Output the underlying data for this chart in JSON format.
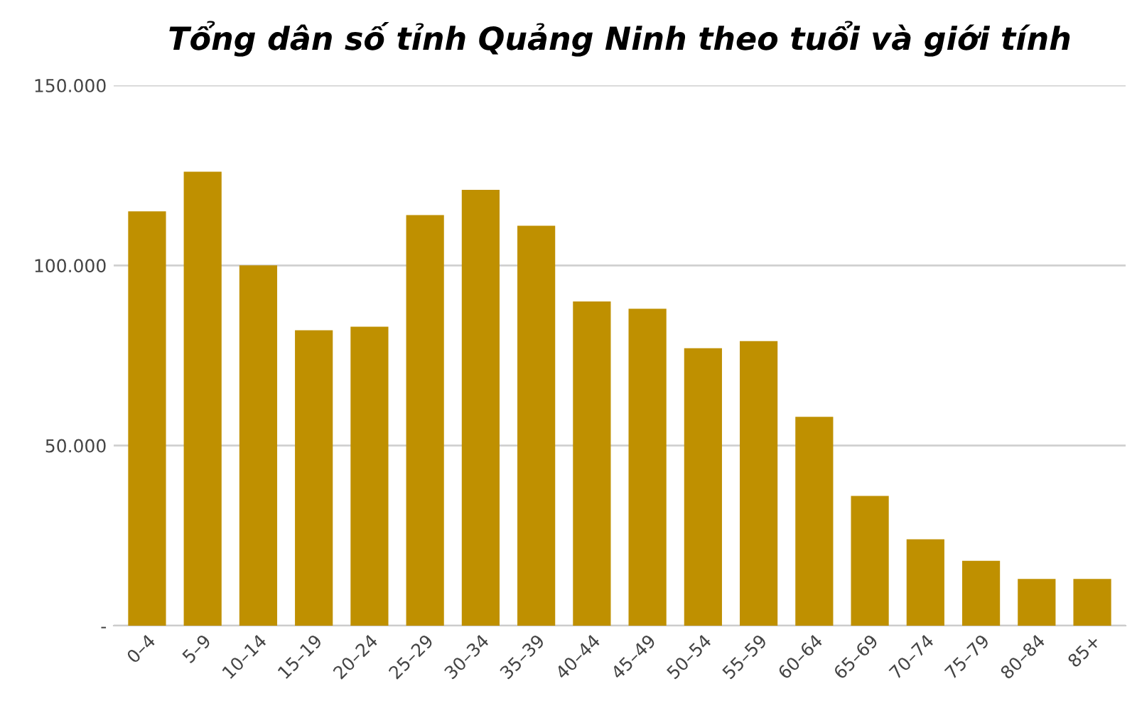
{
  "chart_data": {
    "type": "bar",
    "title": "Tổng dân số tỉnh Quảng Ninh theo tuổi và giới tính",
    "categories": [
      "0–4",
      "5–9",
      "10–14",
      "15–19",
      "20–24",
      "25–29",
      "30–34",
      "35–39",
      "40–44",
      "45–49",
      "50–54",
      "55–59",
      "60–64",
      "65–69",
      "70–74",
      "75–79",
      "80–84",
      "85+"
    ],
    "values": [
      115000,
      126000,
      100000,
      82000,
      83000,
      114000,
      121000,
      111000,
      90000,
      88000,
      77000,
      79000,
      58000,
      36000,
      24000,
      18000,
      13000,
      13000
    ],
    "color": "#bf9000",
    "ylim": [
      0,
      150000
    ],
    "yticks": [
      {
        "value": 0,
        "label": "-"
      },
      {
        "value": 50000,
        "label": "50.000"
      },
      {
        "value": 100000,
        "label": "100.000"
      },
      {
        "value": 150000,
        "label": "150.000"
      }
    ],
    "grid": "y"
  }
}
